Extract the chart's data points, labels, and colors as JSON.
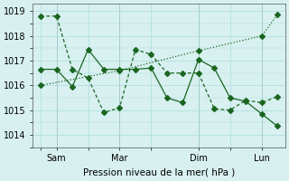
{
  "title": "",
  "xlabel": "Pression niveau de la mer( hPa )",
  "ylabel": "",
  "bg_color": "#d8f0f0",
  "grid_color": "#aadddd",
  "line_color": "#1a6620",
  "line_color2": "#1a6620",
  "ylim": [
    1013.5,
    1019.3
  ],
  "yticks": [
    1014,
    1015,
    1016,
    1017,
    1018,
    1019
  ],
  "xtick_labels": [
    "",
    "Sam",
    "",
    "Mar",
    "",
    "Dim",
    "",
    "Lun"
  ],
  "xtick_positions": [
    0,
    1,
    3,
    5,
    7,
    10,
    12,
    14
  ],
  "series1_x": [
    0,
    1,
    2,
    3,
    4,
    5,
    6,
    7,
    8,
    9,
    10,
    11,
    12,
    13,
    14,
    15
  ],
  "series1_y": [
    1018.8,
    1018.8,
    1016.65,
    1016.3,
    1014.9,
    1015.1,
    1017.45,
    1017.25,
    1016.5,
    1016.5,
    1016.5,
    1015.05,
    1015.0,
    1015.4,
    1015.3,
    1015.55
  ],
  "series2_x": [
    0,
    1,
    2,
    3,
    4,
    5,
    6,
    7,
    8,
    9,
    10,
    11,
    12,
    13,
    14,
    15
  ],
  "series2_y": [
    1016.65,
    1016.65,
    1015.95,
    1017.45,
    1016.65,
    1016.65,
    1016.65,
    1016.7,
    1015.5,
    1015.3,
    1017.05,
    1016.7,
    1015.5,
    1015.35,
    1014.85,
    1014.35
  ],
  "series3_x": [
    0,
    5,
    10,
    14,
    15
  ],
  "series3_y": [
    1016.0,
    1016.6,
    1017.4,
    1018.0,
    1018.85
  ],
  "vline_positions": [
    1,
    5,
    10,
    14
  ],
  "marker": "D",
  "marker_size": 3
}
